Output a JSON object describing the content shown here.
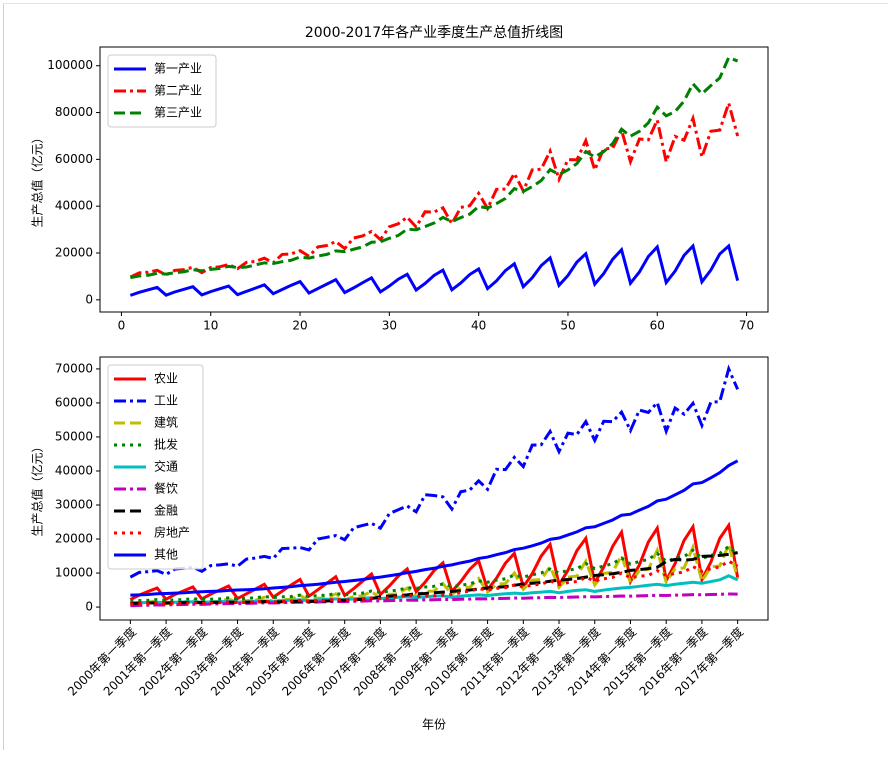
{
  "chart_data": [
    {
      "type": "line",
      "title": "2000-2017年各产业季度生产总值折线图",
      "ylabel": "生产总值（亿元）",
      "x": [
        1,
        2,
        3,
        4,
        5,
        6,
        7,
        8,
        9,
        10,
        11,
        12,
        13,
        14,
        15,
        16,
        17,
        18,
        19,
        20,
        21,
        22,
        23,
        24,
        25,
        26,
        27,
        28,
        29,
        30,
        31,
        32,
        33,
        34,
        35,
        36,
        37,
        38,
        39,
        40,
        41,
        42,
        43,
        44,
        45,
        46,
        47,
        48,
        49,
        50,
        51,
        52,
        53,
        54,
        55,
        56,
        57,
        58,
        59,
        60,
        61,
        62,
        63,
        64,
        65,
        66,
        67,
        68,
        69
      ],
      "xlim": [
        -2.4,
        72.4
      ],
      "xticks": [
        0,
        10,
        20,
        30,
        40,
        50,
        60,
        70
      ],
      "ylim": [
        -5200,
        108000
      ],
      "yticks": [
        0,
        20000,
        40000,
        60000,
        80000,
        100000
      ],
      "legend": "upper left",
      "series": [
        {
          "name": "第一产业",
          "color": "#0000ff",
          "linestyle": "solid",
          "values": [
            1900,
            3200,
            4300,
            5300,
            2000,
            3400,
            4500,
            5600,
            2100,
            3500,
            4700,
            5900,
            2200,
            3600,
            5000,
            6400,
            2600,
            4400,
            6200,
            7800,
            2900,
            4800,
            6700,
            8600,
            3100,
            5100,
            7300,
            9400,
            3400,
            5900,
            8800,
            10900,
            4200,
            7000,
            10400,
            12700,
            4300,
            7200,
            10800,
            13200,
            4800,
            8100,
            12500,
            15400,
            5600,
            9400,
            14600,
            17900,
            6200,
            10400,
            16100,
            19700,
            6700,
            11200,
            17300,
            21400,
            7100,
            11900,
            18500,
            22600,
            7400,
            12300,
            19000,
            23000,
            7700,
            12700,
            19600,
            23000,
            8200
          ]
        },
        {
          "name": "第二产业",
          "color": "#ff0000",
          "linestyle": "dashdot",
          "values": [
            9700,
            11500,
            11800,
            12600,
            10600,
            12600,
            12900,
            13900,
            11600,
            13800,
            14100,
            15100,
            13300,
            16000,
            16400,
            17800,
            15800,
            19400,
            19600,
            21000,
            18600,
            22600,
            23200,
            24900,
            21900,
            26400,
            27300,
            29200,
            25700,
            31200,
            32500,
            35300,
            31100,
            37600,
            37500,
            39300,
            32500,
            39500,
            40200,
            45500,
            39000,
            47200,
            47300,
            54000,
            46500,
            55500,
            55800,
            63500,
            51500,
            59900,
            59800,
            68000,
            55500,
            64500,
            64700,
            72500,
            59000,
            68700,
            68300,
            76800,
            59000,
            69800,
            68200,
            77500,
            61000,
            72000,
            72500,
            84000,
            70000
          ]
        },
        {
          "name": "第三产业",
          "color": "#008000",
          "linestyle": "dashed",
          "values": [
            9500,
            10200,
            10500,
            11300,
            11000,
            11600,
            12000,
            12900,
            12400,
            13000,
            13400,
            14300,
            13800,
            14000,
            14900,
            15800,
            15500,
            16300,
            16900,
            18300,
            17800,
            18700,
            19400,
            20900,
            20600,
            21600,
            22600,
            24600,
            24800,
            26300,
            27500,
            30200,
            29900,
            31300,
            32800,
            35200,
            33400,
            35100,
            36600,
            39900,
            39200,
            41100,
            43300,
            47500,
            46300,
            48400,
            50900,
            55600,
            53500,
            55500,
            58200,
            63300,
            61000,
            63300,
            66700,
            72900,
            69900,
            72000,
            75600,
            82300,
            78600,
            80400,
            84900,
            92300,
            88000,
            91500,
            94800,
            103500,
            102000
          ]
        }
      ]
    },
    {
      "type": "line",
      "ylabel": "生产总值（亿元）",
      "xlabel": "年份",
      "categories": [
        "2000年第一季度",
        null,
        null,
        null,
        "2001年第一季度",
        null,
        null,
        null,
        "2002年第一季度",
        null,
        null,
        null,
        "2003年第一季度",
        null,
        null,
        null,
        "2004年第一季度",
        null,
        null,
        null,
        "2005年第一季度",
        null,
        null,
        null,
        "2006年第一季度",
        null,
        null,
        null,
        "2007年第一季度",
        null,
        null,
        null,
        "2008年第一季度",
        null,
        null,
        null,
        "2009年第一季度",
        null,
        null,
        null,
        "2010年第一季度",
        null,
        null,
        null,
        "2011年第一季度",
        null,
        null,
        null,
        "2012年第一季度",
        null,
        null,
        null,
        "2013年第一季度",
        null,
        null,
        null,
        "2014年第一季度",
        null,
        null,
        null,
        "2015年第一季度",
        null,
        null,
        null,
        "2016年第一季度",
        null,
        null,
        null,
        "2017年第一季度"
      ],
      "ylim": [
        -3800,
        73500
      ],
      "yticks": [
        0,
        10000,
        20000,
        30000,
        40000,
        50000,
        60000,
        70000
      ],
      "legend": "upper left",
      "series": [
        {
          "name": "农业",
          "color": "#ff0000",
          "linestyle": "solid",
          "values": [
            2200,
            3500,
            4600,
            5600,
            2300,
            3700,
            4800,
            5900,
            2400,
            3800,
            5000,
            6200,
            2500,
            3900,
            5300,
            6700,
            2900,
            4700,
            6500,
            8100,
            3200,
            5100,
            7000,
            8900,
            3400,
            5400,
            7600,
            9700,
            3700,
            6200,
            9100,
            11200,
            4500,
            7300,
            10700,
            13000,
            4600,
            7500,
            11100,
            13600,
            5100,
            8500,
            12900,
            15800,
            5900,
            9800,
            15000,
            18400,
            6500,
            10800,
            16600,
            20200,
            7100,
            11700,
            17800,
            22000,
            7500,
            12400,
            19100,
            23200,
            7800,
            12800,
            19600,
            23600,
            8100,
            13200,
            20200,
            24000,
            8600
          ]
        },
        {
          "name": "工业",
          "color": "#0000ff",
          "linestyle": "dashdot",
          "values": [
            8800,
            10200,
            10400,
            10700,
            9600,
            11200,
            11400,
            11700,
            10500,
            12200,
            12400,
            12700,
            12000,
            14100,
            14400,
            14900,
            14300,
            17200,
            17300,
            17500,
            16800,
            20000,
            20500,
            21000,
            19800,
            23300,
            24000,
            24600,
            23200,
            27500,
            28600,
            29700,
            28000,
            33000,
            32800,
            32400,
            28800,
            33900,
            34400,
            37100,
            34600,
            40500,
            40400,
            44000,
            41300,
            47600,
            47700,
            51600,
            45700,
            51100,
            50700,
            54500,
            49000,
            54600,
            54500,
            57300,
            51900,
            57900,
            57200,
            60100,
            51700,
            58500,
            56700,
            59900,
            53400,
            60200,
            60400,
            70000,
            64000
          ]
        },
        {
          "name": "建筑",
          "color": "#bfbf00",
          "linestyle": "dashed",
          "values": [
            900,
            1300,
            1400,
            1900,
            1000,
            1400,
            1500,
            2200,
            1100,
            1600,
            1700,
            2400,
            1300,
            1900,
            2000,
            2900,
            1500,
            2200,
            2300,
            3500,
            1800,
            2600,
            2700,
            3900,
            2100,
            3100,
            3300,
            4600,
            2500,
            3700,
            3900,
            5600,
            3100,
            4600,
            4700,
            6900,
            3700,
            5600,
            5800,
            8400,
            4400,
            6700,
            6900,
            10000,
            5200,
            7900,
            8100,
            11900,
            5800,
            8800,
            9100,
            13500,
            6500,
            9900,
            10200,
            15200,
            7100,
            10800,
            11100,
            16700,
            7300,
            11300,
            11500,
            17600,
            7600,
            11800,
            12100,
            18400,
            8300
          ]
        },
        {
          "name": "批发",
          "color": "#008000",
          "linestyle": "dotted",
          "values": [
            1800,
            1900,
            2000,
            2200,
            2000,
            2100,
            2200,
            2500,
            2200,
            2300,
            2400,
            2700,
            2400,
            2600,
            2700,
            3100,
            2800,
            3000,
            3100,
            3500,
            3100,
            3400,
            3500,
            4000,
            3600,
            3900,
            4100,
            4700,
            4300,
            4700,
            5000,
            5700,
            5500,
            5900,
            6100,
            6800,
            6000,
            6400,
            6800,
            7700,
            7300,
            7900,
            8300,
            9400,
            8800,
            9500,
            10000,
            11200,
            10000,
            10800,
            11300,
            12800,
            11300,
            12100,
            12700,
            14400,
            12600,
            13400,
            14000,
            15800,
            13400,
            14300,
            14800,
            16700,
            14300,
            15200,
            15800,
            17800,
            15400
          ]
        },
        {
          "name": "交通",
          "color": "#00bfbf",
          "linestyle": "solid",
          "values": [
            1200,
            1300,
            1350,
            1400,
            1300,
            1400,
            1500,
            1550,
            1400,
            1500,
            1600,
            1650,
            1450,
            1500,
            1700,
            1800,
            1700,
            1900,
            2000,
            2100,
            1900,
            2100,
            2300,
            2400,
            2200,
            2400,
            2600,
            2700,
            2500,
            2700,
            2900,
            3100,
            2800,
            3000,
            3200,
            3300,
            2900,
            3200,
            3400,
            3600,
            3400,
            3700,
            3900,
            4100,
            3900,
            4200,
            4400,
            4600,
            4200,
            4600,
            4900,
            5100,
            4600,
            5000,
            5300,
            5600,
            5800,
            6100,
            6400,
            6700,
            6300,
            6700,
            7000,
            7300,
            7000,
            7500,
            8000,
            9200,
            8000
          ]
        },
        {
          "name": "餐饮",
          "color": "#bf00bf",
          "linestyle": "dashdot",
          "values": [
            400,
            500,
            550,
            650,
            600,
            700,
            750,
            850,
            800,
            900,
            950,
            1050,
            1000,
            1100,
            1150,
            1250,
            1200,
            1300,
            1350,
            1450,
            1400,
            1500,
            1550,
            1650,
            1600,
            1700,
            1750,
            1850,
            1800,
            1900,
            1950,
            2050,
            2000,
            2100,
            2150,
            2250,
            2200,
            2300,
            2350,
            2450,
            2400,
            2500,
            2550,
            2650,
            2600,
            2700,
            2750,
            2850,
            2800,
            2900,
            2950,
            3050,
            3000,
            3100,
            3150,
            3250,
            3200,
            3300,
            3350,
            3450,
            3400,
            3500,
            3550,
            3650,
            3600,
            3700,
            3750,
            3850,
            3800
          ]
        },
        {
          "name": "金融",
          "color": "#000000",
          "linestyle": "dashed",
          "values": [
            1100,
            1150,
            1200,
            1250,
            1200,
            1250,
            1300,
            1350,
            1300,
            1350,
            1400,
            1450,
            1400,
            1450,
            1500,
            1600,
            1500,
            1550,
            1600,
            1700,
            1600,
            1700,
            1800,
            1900,
            2000,
            2100,
            2300,
            2500,
            3000,
            3200,
            3400,
            3600,
            3900,
            4000,
            4200,
            4400,
            4600,
            4800,
            5000,
            5300,
            5600,
            5800,
            6000,
            6400,
            6800,
            7000,
            7200,
            7600,
            7900,
            8100,
            8400,
            8800,
            9300,
            9500,
            9800,
            10200,
            10800,
            11000,
            11300,
            11700,
            13400,
            14000,
            13800,
            14000,
            14900,
            15000,
            15200,
            15500,
            16000
          ]
        },
        {
          "name": "房地产",
          "color": "#ff0000",
          "linestyle": "dotted",
          "values": [
            900,
            1000,
            1000,
            1200,
            1000,
            1100,
            1100,
            1300,
            1100,
            1200,
            1300,
            1500,
            1300,
            1400,
            1500,
            1700,
            1500,
            1600,
            1700,
            2000,
            1700,
            1900,
            2000,
            2300,
            2000,
            2200,
            2300,
            2700,
            2500,
            2800,
            3000,
            3500,
            3100,
            3300,
            3300,
            3500,
            3700,
            4300,
            4700,
            5400,
            5000,
            5500,
            5700,
            6500,
            5900,
            6500,
            6700,
            7700,
            6600,
            7200,
            7500,
            8700,
            7700,
            8300,
            8700,
            10000,
            8600,
            9100,
            9300,
            10700,
            9300,
            9900,
            10300,
            11900,
            10500,
            11300,
            11800,
            13500,
            12000
          ]
        },
        {
          "name": "其他",
          "color": "#0000ff",
          "linestyle": "solid",
          "values": [
            3500,
            3600,
            3700,
            3900,
            4000,
            4100,
            4200,
            4400,
            4500,
            4600,
            4700,
            4900,
            5000,
            5100,
            5200,
            5400,
            5600,
            5800,
            6000,
            6300,
            6500,
            6700,
            7000,
            7300,
            7500,
            7800,
            8100,
            8500,
            8800,
            9200,
            9600,
            10100,
            10500,
            11000,
            11400,
            12000,
            12400,
            13000,
            13500,
            14300,
            14700,
            15400,
            16000,
            16900,
            17300,
            18000,
            18800,
            19900,
            20300,
            21200,
            22100,
            23300,
            23600,
            24600,
            25600,
            27000,
            27300,
            28500,
            29600,
            31200,
            31700,
            33000,
            34300,
            36200,
            36600,
            38000,
            39500,
            41600,
            43000
          ]
        }
      ]
    }
  ]
}
